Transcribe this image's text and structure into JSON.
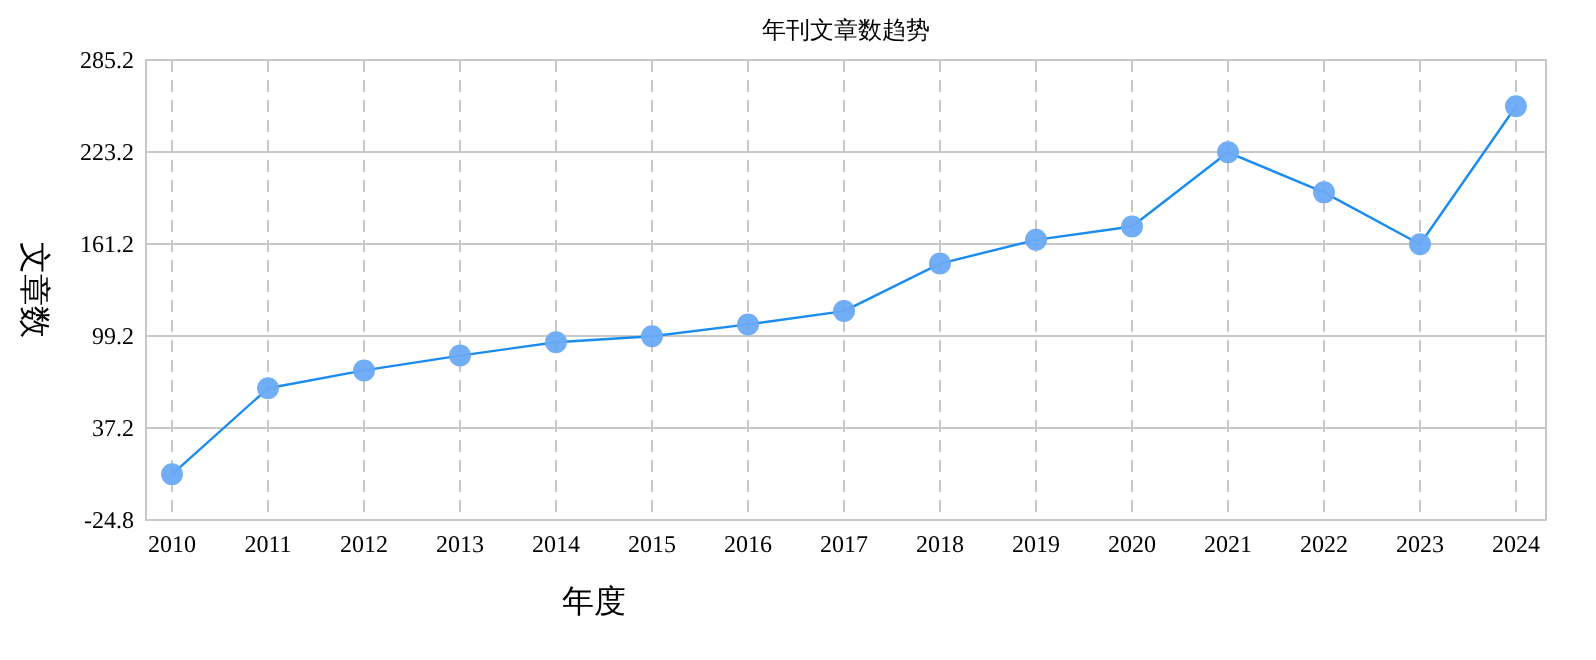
{
  "chart_data": {
    "type": "line",
    "title": "年刊文章数趋势",
    "xlabel": "年度",
    "ylabel": "文章数",
    "categories": [
      "2010",
      "2011",
      "2012",
      "2013",
      "2014",
      "2015",
      "2016",
      "2017",
      "2018",
      "2019",
      "2020",
      "2021",
      "2022",
      "2023",
      "2024"
    ],
    "series": [
      {
        "color": "#1a8cf0",
        "values": [
          6,
          64,
          76,
          86,
          95,
          99,
          107,
          116,
          148,
          164,
          173,
          223,
          196,
          161,
          254
        ]
      }
    ],
    "ylim": [
      -24.8,
      285.2
    ],
    "yticks": [
      -24.8,
      37.2,
      99.2,
      161.2,
      223.2,
      285.2
    ],
    "grid": true,
    "marker": "circle",
    "line_style": "solid"
  }
}
